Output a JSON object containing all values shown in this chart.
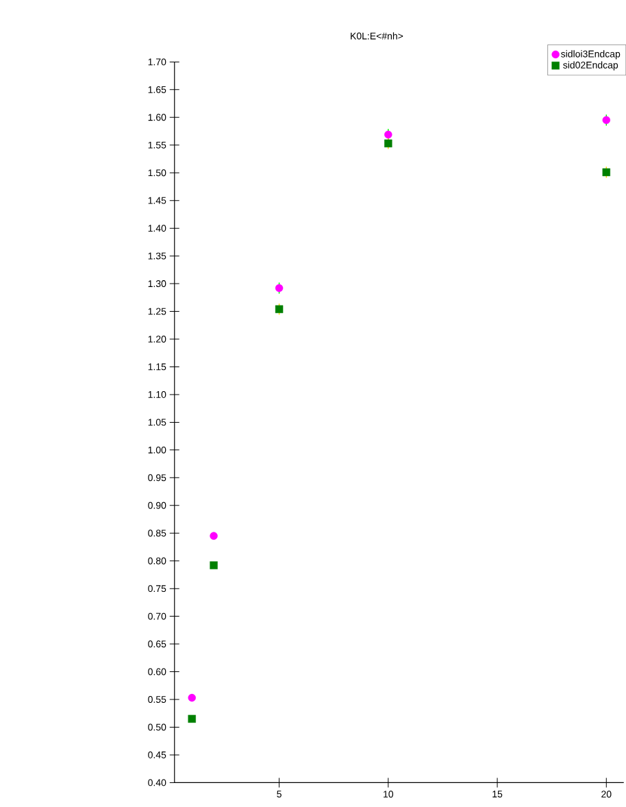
{
  "chart_data": {
    "type": "scatter",
    "title": "K0L:E<#nh>",
    "x": [
      1,
      2,
      5,
      10,
      20
    ],
    "series": [
      {
        "name": "sidloi3Endcap",
        "color": "#ff00ff",
        "marker": "circle",
        "values": [
          0.553,
          0.845,
          1.292,
          1.569,
          1.595
        ],
        "errors": [
          null,
          null,
          0.01,
          0.01,
          0.01
        ]
      },
      {
        "name": "sid02Endcap",
        "color": "#008000",
        "marker": "square",
        "values": [
          0.515,
          0.792,
          1.254,
          1.553,
          1.501
        ],
        "errors": [
          null,
          null,
          0.01,
          0.01,
          0.01
        ]
      }
    ],
    "xlim": [
      0.2,
      20.8
    ],
    "xticks": [
      5,
      10,
      15,
      20
    ],
    "ylim": [
      0.4,
      1.7
    ],
    "yticks": [
      {
        "value": 0.4,
        "label": "0.40"
      },
      {
        "value": 0.45,
        "label": "0.45"
      },
      {
        "value": 0.5,
        "label": "0.50"
      },
      {
        "value": 0.55,
        "label": "0.55"
      },
      {
        "value": 0.6,
        "label": "0.60"
      },
      {
        "value": 0.65,
        "label": "0.65"
      },
      {
        "value": 0.7,
        "label": "0.70"
      },
      {
        "value": 0.75,
        "label": "0.75"
      },
      {
        "value": 0.8,
        "label": "0.80"
      },
      {
        "value": 0.85,
        "label": "0.85"
      },
      {
        "value": 0.9,
        "label": "0.90"
      },
      {
        "value": 0.95,
        "label": "0.95"
      },
      {
        "value": 1.0,
        "label": "1.00"
      },
      {
        "value": 1.05,
        "label": "1.05"
      },
      {
        "value": 1.1,
        "label": "1.10"
      },
      {
        "value": 1.15,
        "label": "1.15"
      },
      {
        "value": 1.2,
        "label": "1.20"
      },
      {
        "value": 1.25,
        "label": "1.25"
      },
      {
        "value": 1.3,
        "label": "1.30"
      },
      {
        "value": 1.35,
        "label": "1.35"
      },
      {
        "value": 1.4,
        "label": "1.40"
      },
      {
        "value": 1.45,
        "label": "1.45"
      },
      {
        "value": 1.5,
        "label": "1.50"
      },
      {
        "value": 1.55,
        "label": "1.55"
      },
      {
        "value": 1.6,
        "label": "1.60"
      },
      {
        "value": 1.65,
        "label": "1.65"
      },
      {
        "value": 1.7,
        "label": "1.70"
      }
    ],
    "grid": false,
    "legend": "top right"
  }
}
